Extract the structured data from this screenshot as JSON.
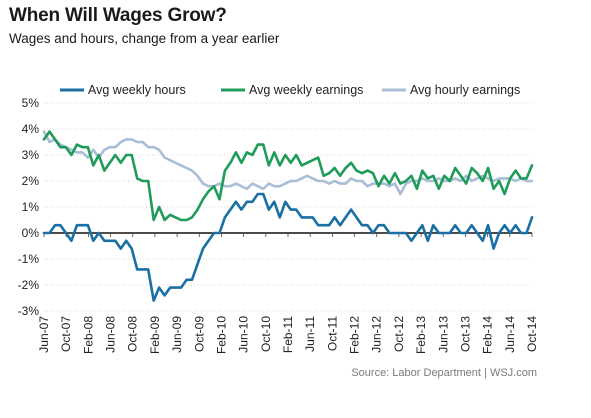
{
  "header": {
    "title": "When Will Wages Grow?",
    "subtitle": "Wages and hours, change from a year earlier"
  },
  "footer": {
    "source": "Source: Labor Department  |  WSJ.com"
  },
  "colors": {
    "hours": "#1a6fa3",
    "weekly": "#1f9b5a",
    "hourly": "#a9bdd6",
    "zero_line": "#111111",
    "grid": "#d9d9d9"
  },
  "chart_data": {
    "type": "line",
    "title": "When Will Wages Grow?",
    "subtitle": "Wages and hours, change from a year earlier",
    "ylim": [
      -3,
      5
    ],
    "y_ticks": [
      -3,
      -2,
      -1,
      0,
      1,
      2,
      3,
      4,
      5
    ],
    "y_tick_labels": [
      "-3%",
      "-2%",
      "-1%",
      "0%",
      "1%",
      "2%",
      "3%",
      "4%",
      "5%"
    ],
    "x_tick_labels": [
      "Jun-07",
      "Oct-07",
      "Feb-08",
      "Jun-08",
      "Oct-08",
      "Feb-09",
      "Jun-09",
      "Oct-09",
      "Feb-10",
      "Jun-10",
      "Oct-10",
      "Feb-11",
      "Jun-11",
      "Oct-11",
      "Feb-12",
      "Jun-12",
      "Oct-12",
      "Feb-13",
      "Jun-13",
      "Oct-13",
      "Feb-14",
      "Jun-14",
      "Oct-14"
    ],
    "x_start": "Jun-07",
    "x_end": "Oct-14",
    "grid": "horizontal",
    "legend_position": "top",
    "series": [
      {
        "name": "Avg weekly hours",
        "color_key": "hours",
        "values": [
          0.0,
          0.0,
          0.3,
          0.3,
          0.0,
          -0.3,
          0.3,
          0.3,
          0.3,
          -0.3,
          0.0,
          -0.3,
          -0.3,
          -0.3,
          -0.6,
          -0.3,
          -0.6,
          -1.4,
          -1.4,
          -1.4,
          -2.6,
          -2.1,
          -2.4,
          -2.1,
          -2.1,
          -2.1,
          -1.8,
          -1.8,
          -1.2,
          -0.6,
          -0.3,
          0.0,
          0.0,
          0.6,
          0.9,
          1.2,
          0.9,
          1.2,
          1.2,
          1.5,
          1.5,
          0.9,
          1.2,
          0.6,
          1.2,
          0.9,
          0.9,
          0.6,
          0.6,
          0.6,
          0.3,
          0.3,
          0.3,
          0.6,
          0.3,
          0.6,
          0.9,
          0.6,
          0.3,
          0.3,
          0.0,
          0.3,
          0.3,
          0.0,
          0.0,
          0.0,
          0.0,
          -0.3,
          0.0,
          0.3,
          -0.3,
          0.3,
          0.0,
          0.0,
          0.0,
          0.3,
          0.0,
          0.0,
          0.3,
          0.0,
          -0.3,
          0.3,
          -0.6,
          0.0,
          0.3,
          0.0,
          0.3,
          0.0,
          0.0,
          0.6
        ]
      },
      {
        "name": "Avg weekly earnings",
        "color_key": "weekly",
        "values": [
          3.6,
          3.9,
          3.6,
          3.3,
          3.3,
          3.0,
          3.4,
          3.3,
          3.3,
          2.6,
          3.0,
          2.4,
          2.7,
          3.0,
          2.7,
          3.0,
          3.0,
          2.1,
          2.0,
          2.0,
          0.5,
          1.0,
          0.5,
          0.7,
          0.6,
          0.5,
          0.5,
          0.6,
          0.9,
          1.3,
          1.6,
          1.8,
          1.3,
          2.4,
          2.7,
          3.1,
          2.7,
          3.1,
          3.0,
          3.4,
          3.4,
          2.6,
          3.1,
          2.6,
          3.0,
          2.7,
          3.0,
          2.6,
          2.7,
          2.8,
          2.9,
          2.2,
          2.3,
          2.5,
          2.2,
          2.5,
          2.7,
          2.4,
          2.3,
          2.4,
          2.3,
          1.8,
          2.2,
          1.9,
          2.3,
          1.9,
          2.0,
          2.2,
          1.7,
          2.4,
          2.1,
          2.2,
          1.7,
          2.2,
          2.0,
          2.5,
          2.2,
          1.9,
          2.5,
          2.3,
          2.0,
          2.5,
          1.7,
          2.0,
          1.5,
          2.1,
          2.4,
          2.1,
          2.1,
          2.6
        ]
      },
      {
        "name": "Avg hourly earnings",
        "color_key": "hourly",
        "values": [
          3.9,
          3.5,
          3.6,
          3.4,
          3.3,
          3.2,
          3.1,
          3.1,
          2.9,
          3.2,
          2.9,
          3.2,
          3.3,
          3.3,
          3.5,
          3.6,
          3.6,
          3.5,
          3.5,
          3.3,
          3.3,
          3.2,
          2.9,
          2.8,
          2.7,
          2.6,
          2.5,
          2.4,
          2.2,
          1.9,
          1.8,
          1.8,
          1.9,
          1.8,
          1.8,
          1.9,
          1.8,
          1.7,
          1.9,
          1.8,
          1.7,
          1.9,
          1.8,
          1.8,
          1.9,
          2.0,
          2.0,
          2.1,
          2.2,
          2.1,
          2.0,
          2.0,
          1.9,
          2.0,
          1.9,
          1.9,
          2.1,
          2.0,
          2.0,
          1.8,
          1.9,
          1.9,
          1.9,
          1.8,
          1.9,
          1.5,
          1.9,
          2.0,
          2.0,
          2.1,
          2.0,
          2.0,
          2.1,
          2.0,
          2.0,
          2.1,
          2.0,
          2.2,
          2.0,
          2.1,
          2.2,
          2.1,
          2.0,
          2.1,
          2.1,
          2.1,
          2.0,
          2.1,
          2.0,
          2.0
        ]
      }
    ]
  }
}
